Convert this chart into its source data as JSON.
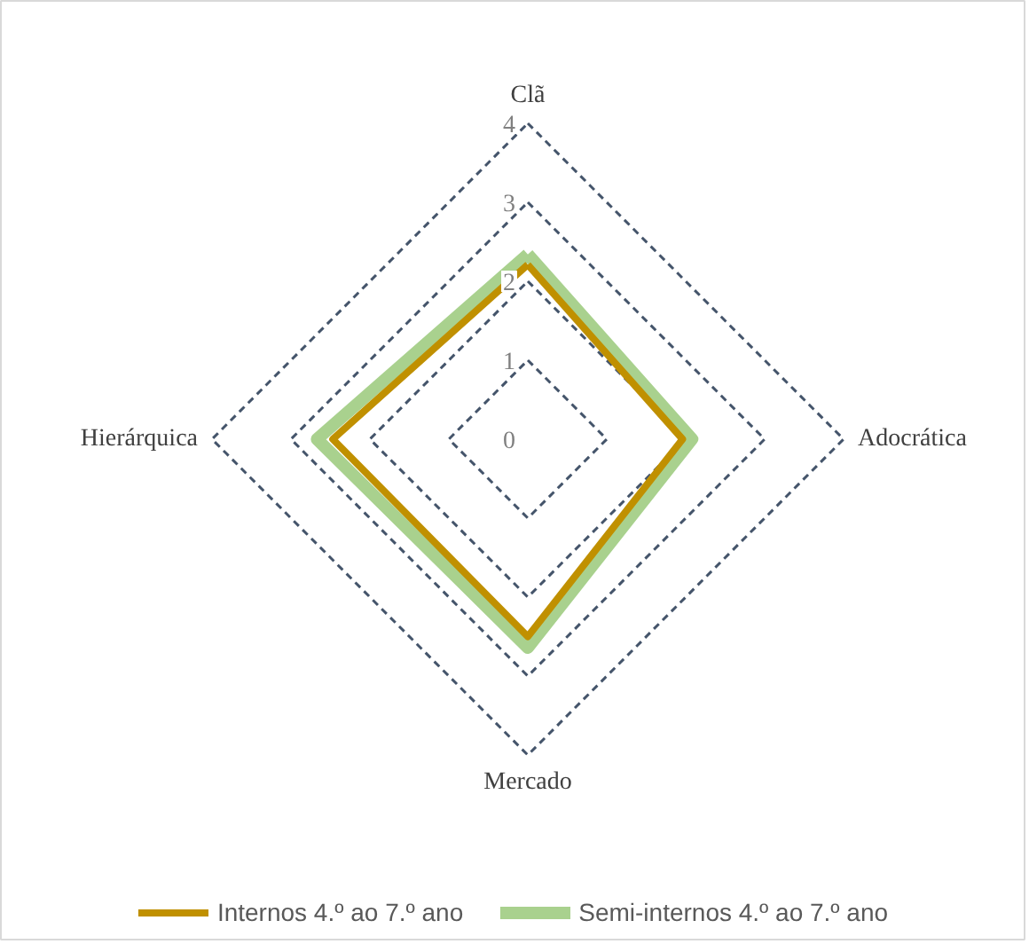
{
  "chart_data": {
    "type": "radar",
    "categories": [
      "Clã",
      "Adocrática",
      "Mercado",
      "Hierárquica"
    ],
    "series": [
      {
        "name": "Internos 4.º ao 7.º ano",
        "color": "#c09000",
        "values": [
          2.21,
          1.96,
          2.5,
          2.47
        ]
      },
      {
        "name": "Semi-internos 4.º ao 7.º ano",
        "color": "#a9d18e",
        "values": [
          2.34,
          2.08,
          2.64,
          2.67
        ]
      }
    ],
    "ylim": [
      0,
      4
    ],
    "yticks": [
      0,
      1,
      2,
      3,
      4
    ],
    "grid": true,
    "legend": "bottom"
  }
}
